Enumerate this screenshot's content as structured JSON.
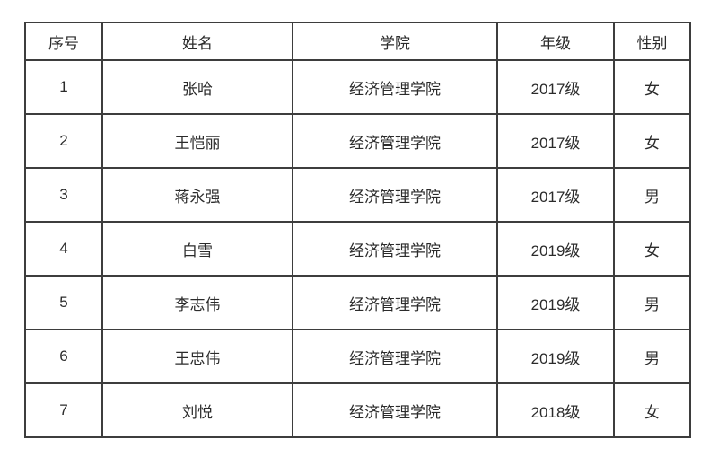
{
  "table": {
    "headers": [
      "序号",
      "姓名",
      "学院",
      "年级",
      "性别"
    ],
    "rows": [
      [
        "1",
        "张哈",
        "经济管理学院",
        "2017级",
        "女"
      ],
      [
        "2",
        "王恺丽",
        "经济管理学院",
        "2017级",
        "女"
      ],
      [
        "3",
        "蒋永强",
        "经济管理学院",
        "2017级",
        "男"
      ],
      [
        "4",
        "白雪",
        "经济管理学院",
        "2019级",
        "女"
      ],
      [
        "5",
        "李志伟",
        "经济管理学院",
        "2019级",
        "男"
      ],
      [
        "6",
        "王忠伟",
        "经济管理学院",
        "2019级",
        "男"
      ],
      [
        "7",
        "刘悦",
        "经济管理学院",
        "2018级",
        "女"
      ]
    ],
    "colors": {
      "border": "#3d3d3d",
      "text": "#2b2b2b",
      "background": "#ffffff"
    }
  }
}
